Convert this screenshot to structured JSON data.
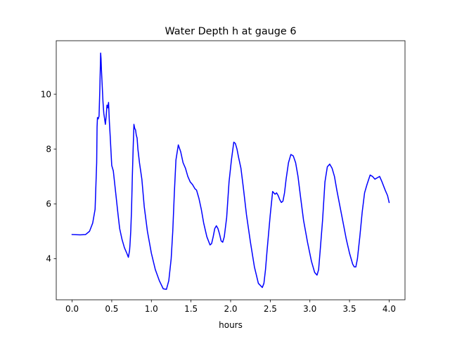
{
  "chart_data": {
    "type": "line",
    "title": "Water Depth h at gauge 6",
    "xlabel": "hours",
    "ylabel": "",
    "xlim": [
      -0.2,
      4.2
    ],
    "ylim": [
      2.5,
      11.95
    ],
    "xticks": [
      0.0,
      0.5,
      1.0,
      1.5,
      2.0,
      2.5,
      3.0,
      3.5,
      4.0
    ],
    "xtick_labels": [
      "0.0",
      "0.5",
      "1.0",
      "1.5",
      "2.0",
      "2.5",
      "3.0",
      "3.5",
      "4.0"
    ],
    "yticks": [
      4,
      6,
      8,
      10
    ],
    "ytick_labels": [
      "4",
      "6",
      "8",
      "10"
    ],
    "grid": false,
    "line_color": "#0000ff",
    "series": [
      {
        "x": [
          0.0,
          0.1,
          0.17,
          0.22,
          0.26,
          0.29,
          0.31,
          0.315,
          0.32,
          0.33,
          0.34,
          0.35,
          0.36,
          0.365,
          0.37,
          0.38,
          0.39,
          0.4,
          0.42,
          0.43,
          0.44,
          0.45,
          0.46,
          0.47,
          0.48,
          0.5,
          0.52,
          0.55,
          0.58,
          0.6,
          0.63,
          0.66,
          0.69,
          0.71,
          0.725,
          0.73,
          0.74,
          0.75,
          0.76,
          0.77,
          0.78,
          0.79,
          0.8,
          0.81,
          0.82,
          0.83,
          0.85,
          0.88,
          0.91,
          0.95,
          1.0,
          1.05,
          1.1,
          1.15,
          1.19,
          1.22,
          1.25,
          1.27,
          1.29,
          1.31,
          1.34,
          1.37,
          1.4,
          1.43,
          1.46,
          1.49,
          1.52,
          1.55,
          1.57,
          1.6,
          1.63,
          1.66,
          1.7,
          1.74,
          1.76,
          1.78,
          1.8,
          1.82,
          1.84,
          1.86,
          1.88,
          1.9,
          1.92,
          1.95,
          1.98,
          2.01,
          2.04,
          2.06,
          2.08,
          2.1,
          2.13,
          2.16,
          2.2,
          2.25,
          2.3,
          2.35,
          2.4,
          2.42,
          2.44,
          2.46,
          2.5,
          2.53,
          2.56,
          2.58,
          2.6,
          2.62,
          2.64,
          2.66,
          2.68,
          2.7,
          2.73,
          2.76,
          2.79,
          2.82,
          2.85,
          2.88,
          2.92,
          2.97,
          3.02,
          3.06,
          3.09,
          3.11,
          3.13,
          3.16,
          3.19,
          3.22,
          3.25,
          3.28,
          3.31,
          3.34,
          3.38,
          3.42,
          3.46,
          3.5,
          3.54,
          3.56,
          3.58,
          3.6,
          3.63,
          3.66,
          3.69,
          3.72,
          3.76,
          3.79,
          3.82,
          3.85,
          3.88,
          3.91,
          3.95,
          3.98,
          4.0
        ],
        "y": [
          4.88,
          4.87,
          4.88,
          5.0,
          5.3,
          5.8,
          7.5,
          8.8,
          9.15,
          9.1,
          9.2,
          10.2,
          11.5,
          11.3,
          10.9,
          10.3,
          9.7,
          9.3,
          8.9,
          9.2,
          9.6,
          9.5,
          9.7,
          9.0,
          8.5,
          7.4,
          7.2,
          6.4,
          5.6,
          5.1,
          4.7,
          4.4,
          4.2,
          4.05,
          4.3,
          4.5,
          5.0,
          5.8,
          7.0,
          8.0,
          8.9,
          8.75,
          8.7,
          8.5,
          8.4,
          8.0,
          7.5,
          6.9,
          5.9,
          5.0,
          4.2,
          3.6,
          3.2,
          2.9,
          2.88,
          3.2,
          4.0,
          5.0,
          6.4,
          7.6,
          8.15,
          7.9,
          7.5,
          7.3,
          7.0,
          6.8,
          6.7,
          6.55,
          6.5,
          6.2,
          5.8,
          5.3,
          4.8,
          4.5,
          4.55,
          4.8,
          5.1,
          5.2,
          5.1,
          4.9,
          4.65,
          4.6,
          4.8,
          5.5,
          6.8,
          7.6,
          8.25,
          8.2,
          8.0,
          7.7,
          7.3,
          6.6,
          5.6,
          4.6,
          3.7,
          3.1,
          2.95,
          3.1,
          3.6,
          4.3,
          5.6,
          6.45,
          6.35,
          6.4,
          6.3,
          6.15,
          6.05,
          6.1,
          6.4,
          6.9,
          7.5,
          7.8,
          7.75,
          7.5,
          7.0,
          6.3,
          5.4,
          4.6,
          3.9,
          3.5,
          3.4,
          3.6,
          4.3,
          5.4,
          6.8,
          7.35,
          7.45,
          7.3,
          7.0,
          6.5,
          5.9,
          5.3,
          4.7,
          4.2,
          3.8,
          3.7,
          3.7,
          4.0,
          4.8,
          5.7,
          6.4,
          6.7,
          7.05,
          7.0,
          6.9,
          6.95,
          7.0,
          6.8,
          6.5,
          6.3,
          6.05
        ]
      }
    ]
  }
}
